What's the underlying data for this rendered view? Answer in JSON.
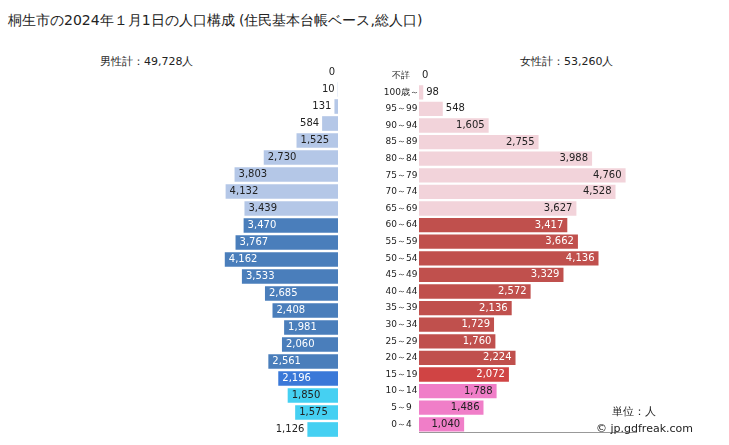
{
  "chart_data": {
    "type": "bar",
    "orientation": "horizontal",
    "title": "桐生市の2024年１月1日の人口構成 (住民基本台帳ベース,総人口)",
    "annotations": [
      "単位：人",
      "© jp.gdfreak.com"
    ],
    "categories": [
      "不詳",
      "100歳～",
      "95～99",
      "90～94",
      "85～89",
      "80～84",
      "75～79",
      "70～74",
      "65～69",
      "60～64",
      "55～59",
      "50～54",
      "45～49",
      "40～44",
      "35～39",
      "30～34",
      "25～29",
      "20～24",
      "15～19",
      "10～14",
      "5～9",
      "0～4"
    ],
    "series": [
      {
        "name": "男性計：49,728人",
        "values": [
          0,
          10,
          131,
          584,
          1525,
          2730,
          3803,
          4132,
          3439,
          3470,
          3767,
          4162,
          3533,
          2685,
          2408,
          1981,
          2060,
          2561,
          2196,
          1850,
          1575,
          1126
        ],
        "value_labels": [
          "0",
          "10",
          "131",
          "584",
          "1,525",
          "2,730",
          "3,803",
          "4,132",
          "3,439",
          "3,470",
          "3,767",
          "4,162",
          "3,533",
          "2,685",
          "2,408",
          "1,981",
          "2,060",
          "2,561",
          "2,196",
          "1,850",
          "1,575",
          "1,126"
        ],
        "colors": [
          "#b4c7e7",
          "#b4c7e7",
          "#b4c7e7",
          "#b4c7e7",
          "#b4c7e7",
          "#b4c7e7",
          "#b4c7e7",
          "#b4c7e7",
          "#b4c7e7",
          "#4a7ebb",
          "#4a7ebb",
          "#4a7ebb",
          "#4a7ebb",
          "#4a7ebb",
          "#4a7ebb",
          "#4a7ebb",
          "#4a7ebb",
          "#4a7ebb",
          "#3a78d8",
          "#45d0f2",
          "#45d0f2",
          "#45d0f2"
        ]
      },
      {
        "name": "女性計：53,260人",
        "values": [
          0,
          98,
          548,
          1605,
          2755,
          3988,
          4760,
          4528,
          3627,
          3417,
          3662,
          4136,
          3329,
          2572,
          2136,
          1729,
          1760,
          2224,
          2072,
          1788,
          1486,
          1040
        ],
        "value_labels": [
          "0",
          "98",
          "548",
          "1,605",
          "2,755",
          "3,988",
          "4,760",
          "4,528",
          "3,627",
          "3,417",
          "3,662",
          "4,136",
          "3,329",
          "2,572",
          "2,136",
          "1,729",
          "1,760",
          "2,224",
          "2,072",
          "1,788",
          "1,486",
          "1,040"
        ],
        "colors": [
          "#f2d3da",
          "#f2d3da",
          "#f2d3da",
          "#f2d3da",
          "#f2d3da",
          "#f2d3da",
          "#f2d3da",
          "#f2d3da",
          "#f2d3da",
          "#c0504d",
          "#c0504d",
          "#c0504d",
          "#c0504d",
          "#c0504d",
          "#c0504d",
          "#c0504d",
          "#c0504d",
          "#c0504d",
          "#d04444",
          "#f07ec8",
          "#f07ec8",
          "#f07ec8"
        ]
      }
    ],
    "xlim": [
      0,
      5000
    ],
    "tick_labels": "y",
    "data_labels": true,
    "grid": false
  }
}
